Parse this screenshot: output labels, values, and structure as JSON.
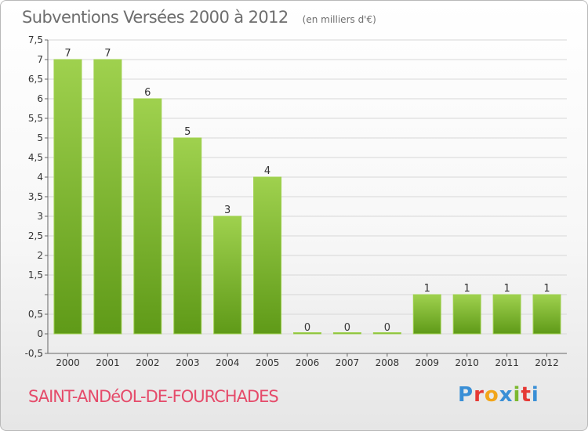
{
  "header": {
    "title": "Subventions Versées 2000 à 2012",
    "unit_note": "(en milliers d'€)"
  },
  "footer": {
    "commune": "SAINT-ANDéOL-DE-FOURCHADES",
    "logo_text": "Proxiti",
    "logo_colors": [
      "#3a8fd6",
      "#e53935",
      "#f2a51a",
      "#3a8fd6",
      "#7cb82f",
      "#e53935",
      "#3a8fd6"
    ]
  },
  "colors": {
    "bar_light": "#9fd14e",
    "bar_dark": "#5f9a18",
    "grid": "#d7d7d7",
    "axis_text": "#333333"
  },
  "chart_data": {
    "type": "bar",
    "categories": [
      "2000",
      "2001",
      "2002",
      "2003",
      "2004",
      "2005",
      "2006",
      "2007",
      "2008",
      "2009",
      "2010",
      "2011",
      "2012"
    ],
    "values": [
      7,
      7,
      6,
      5,
      3,
      4,
      0,
      0,
      0,
      1,
      1,
      1,
      1
    ],
    "data_labels": [
      "7",
      "7",
      "6",
      "5",
      "3",
      "4",
      "0",
      "0",
      "0",
      "1",
      "1",
      "1",
      "1"
    ],
    "ylim": [
      -0.5,
      7.5
    ],
    "yticks": [
      -0.5,
      0,
      0.5,
      1,
      1.5,
      2,
      2.5,
      3,
      3.5,
      4,
      4.5,
      5,
      5.5,
      6,
      6.5,
      7,
      7.5
    ],
    "ytick_labels": [
      "-0,5",
      "0",
      "0,5",
      "",
      "1,5",
      "2",
      "2,5",
      "3",
      "3,5",
      "4",
      "4,5",
      "5",
      "5,5",
      "6",
      "6,5",
      "7",
      "7,5"
    ],
    "grid": true,
    "legend": "none"
  }
}
